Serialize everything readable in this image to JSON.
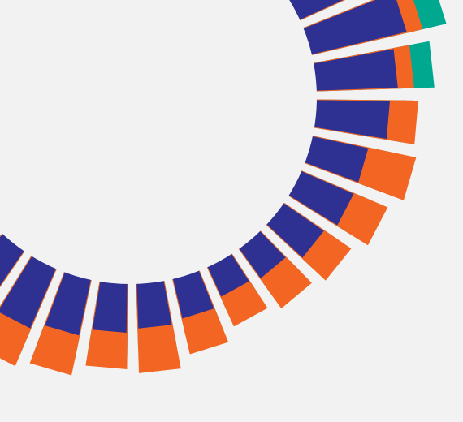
{
  "graphic": {
    "type": "radial-burst",
    "background": "#f2f2f2",
    "colors": {
      "navy": "#2e3192",
      "orange": "#f26522",
      "teal": "#00a88f"
    },
    "segment_count": 32,
    "visible_segment_count": 26
  }
}
